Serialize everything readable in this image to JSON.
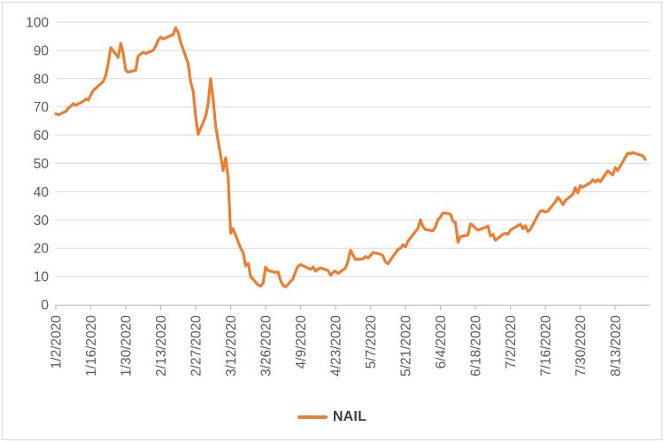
{
  "chart_data": {
    "type": "line",
    "title": "",
    "xlabel": "",
    "ylabel": "",
    "ylim": [
      0,
      100
    ],
    "y_ticks": [
      0,
      10,
      20,
      30,
      40,
      50,
      60,
      70,
      80,
      90,
      100
    ],
    "x_tick_labels": [
      "1/2/2020",
      "1/16/2020",
      "1/30/2020",
      "2/13/2020",
      "2/27/2020",
      "3/12/2020",
      "3/26/2020",
      "4/9/2020",
      "4/23/2020",
      "5/7/2020",
      "5/21/2020",
      "6/4/2020",
      "6/18/2020",
      "7/2/2020",
      "7/16/2020",
      "7/30/2020",
      "8/13/2020"
    ],
    "grid": "horizontal",
    "legend_position": "bottom",
    "series": [
      {
        "name": "NAIL",
        "x": [
          "1/2/2020",
          "1/3/2020",
          "1/6/2020",
          "1/7/2020",
          "1/8/2020",
          "1/9/2020",
          "1/10/2020",
          "1/13/2020",
          "1/14/2020",
          "1/15/2020",
          "1/16/2020",
          "1/17/2020",
          "1/21/2020",
          "1/22/2020",
          "1/23/2020",
          "1/24/2020",
          "1/27/2020",
          "1/28/2020",
          "1/29/2020",
          "1/30/2020",
          "1/31/2020",
          "2/3/2020",
          "2/4/2020",
          "2/5/2020",
          "2/6/2020",
          "2/7/2020",
          "2/10/2020",
          "2/11/2020",
          "2/12/2020",
          "2/13/2020",
          "2/14/2020",
          "2/18/2020",
          "2/19/2020",
          "2/20/2020",
          "2/21/2020",
          "2/24/2020",
          "2/25/2020",
          "2/26/2020",
          "2/27/2020",
          "2/28/2020",
          "3/2/2020",
          "3/3/2020",
          "3/4/2020",
          "3/5/2020",
          "3/6/2020",
          "3/9/2020",
          "3/10/2020",
          "3/11/2020",
          "3/12/2020",
          "3/13/2020",
          "3/16/2020",
          "3/17/2020",
          "3/18/2020",
          "3/19/2020",
          "3/20/2020",
          "3/23/2020",
          "3/24/2020",
          "3/25/2020",
          "3/26/2020",
          "3/27/2020",
          "3/30/2020",
          "3/31/2020",
          "4/1/2020",
          "4/2/2020",
          "4/3/2020",
          "4/6/2020",
          "4/7/2020",
          "4/8/2020",
          "4/9/2020",
          "4/13/2020",
          "4/14/2020",
          "4/15/2020",
          "4/16/2020",
          "4/17/2020",
          "4/20/2020",
          "4/21/2020",
          "4/22/2020",
          "4/23/2020",
          "4/24/2020",
          "4/27/2020",
          "4/28/2020",
          "4/29/2020",
          "4/30/2020",
          "5/1/2020",
          "5/4/2020",
          "5/5/2020",
          "5/6/2020",
          "5/7/2020",
          "5/8/2020",
          "5/11/2020",
          "5/12/2020",
          "5/13/2020",
          "5/14/2020",
          "5/15/2020",
          "5/18/2020",
          "5/19/2020",
          "5/20/2020",
          "5/21/2020",
          "5/22/2020",
          "5/26/2020",
          "5/27/2020",
          "5/28/2020",
          "5/29/2020",
          "6/1/2020",
          "6/2/2020",
          "6/3/2020",
          "6/4/2020",
          "6/5/2020",
          "6/8/2020",
          "6/9/2020",
          "6/10/2020",
          "6/11/2020",
          "6/12/2020",
          "6/15/2020",
          "6/16/2020",
          "6/17/2020",
          "6/18/2020",
          "6/19/2020",
          "6/22/2020",
          "6/23/2020",
          "6/24/2020",
          "6/25/2020",
          "6/26/2020",
          "6/29/2020",
          "6/30/2020",
          "7/1/2020",
          "7/2/2020",
          "7/6/2020",
          "7/7/2020",
          "7/8/2020",
          "7/9/2020",
          "7/10/2020",
          "7/13/2020",
          "7/14/2020",
          "7/15/2020",
          "7/16/2020",
          "7/17/2020",
          "7/20/2020",
          "7/21/2020",
          "7/22/2020",
          "7/23/2020",
          "7/24/2020",
          "7/27/2020",
          "7/28/2020",
          "7/29/2020",
          "7/30/2020",
          "7/31/2020",
          "8/3/2020",
          "8/4/2020",
          "8/5/2020",
          "8/6/2020",
          "8/7/2020",
          "8/10/2020",
          "8/11/2020",
          "8/12/2020",
          "8/13/2020",
          "8/14/2020",
          "8/17/2020",
          "8/18/2020",
          "8/19/2020",
          "8/20/2020",
          "8/21/2020",
          "8/24/2020",
          "8/25/2020"
        ],
        "values": [
          67.6,
          67.2,
          68.4,
          69.6,
          70.2,
          71.2,
          70.6,
          72.0,
          72.8,
          72.4,
          74.2,
          75.8,
          79.0,
          81.0,
          85.5,
          91.0,
          87.5,
          92.5,
          89.0,
          83.0,
          82.3,
          83.0,
          88.0,
          88.7,
          89.3,
          88.9,
          90.0,
          91.5,
          93.6,
          94.7,
          94.0,
          95.6,
          98.0,
          96.3,
          92.9,
          85.4,
          78.6,
          75.6,
          66.6,
          60.3,
          66.6,
          71.2,
          80.0,
          72.6,
          63.2,
          47.5,
          52.0,
          45.0,
          25.3,
          26.9,
          20.0,
          18.5,
          13.8,
          14.6,
          10.0,
          7.0,
          6.6,
          7.6,
          13.3,
          12.1,
          11.4,
          11.6,
          8.6,
          6.8,
          6.3,
          9.2,
          11.8,
          13.6,
          14.2,
          12.5,
          13.4,
          11.9,
          12.6,
          13.0,
          12.1,
          10.4,
          11.5,
          11.9,
          11.0,
          13.0,
          15.5,
          19.3,
          17.5,
          16.0,
          16.2,
          17.1,
          16.5,
          17.4,
          18.5,
          17.9,
          17.3,
          15.1,
          14.5,
          15.9,
          19.5,
          20.0,
          21.2,
          20.5,
          22.5,
          27.0,
          30.0,
          27.6,
          26.6,
          26.1,
          27.6,
          30.1,
          31.0,
          32.5,
          32.1,
          29.6,
          29.1,
          22.1,
          24.1,
          24.6,
          28.6,
          28.1,
          27.1,
          26.4,
          27.4,
          27.9,
          24.4,
          24.9,
          22.8,
          24.9,
          25.3,
          24.9,
          26.4,
          28.5,
          26.9,
          27.9,
          25.9,
          26.6,
          31.7,
          33.1,
          33.3,
          32.8,
          33.1,
          36.4,
          38.0,
          37.0,
          35.4,
          36.9,
          39.0,
          41.4,
          39.6,
          42.1,
          41.6,
          43.2,
          44.2,
          43.4,
          44.3,
          43.5,
          47.4,
          46.6,
          45.9,
          48.5,
          47.5,
          52.1,
          53.7,
          53.4,
          53.9,
          53.5,
          52.7,
          51.4
        ]
      }
    ],
    "colors": {
      "line": "#ED7D31",
      "gridline": "#DADADA",
      "axis": "#BFBFBF",
      "tick_label": "#595959",
      "legend_text": "#3F3F3F",
      "border": "#D7D7D7",
      "background": "#FFFFFF"
    }
  }
}
